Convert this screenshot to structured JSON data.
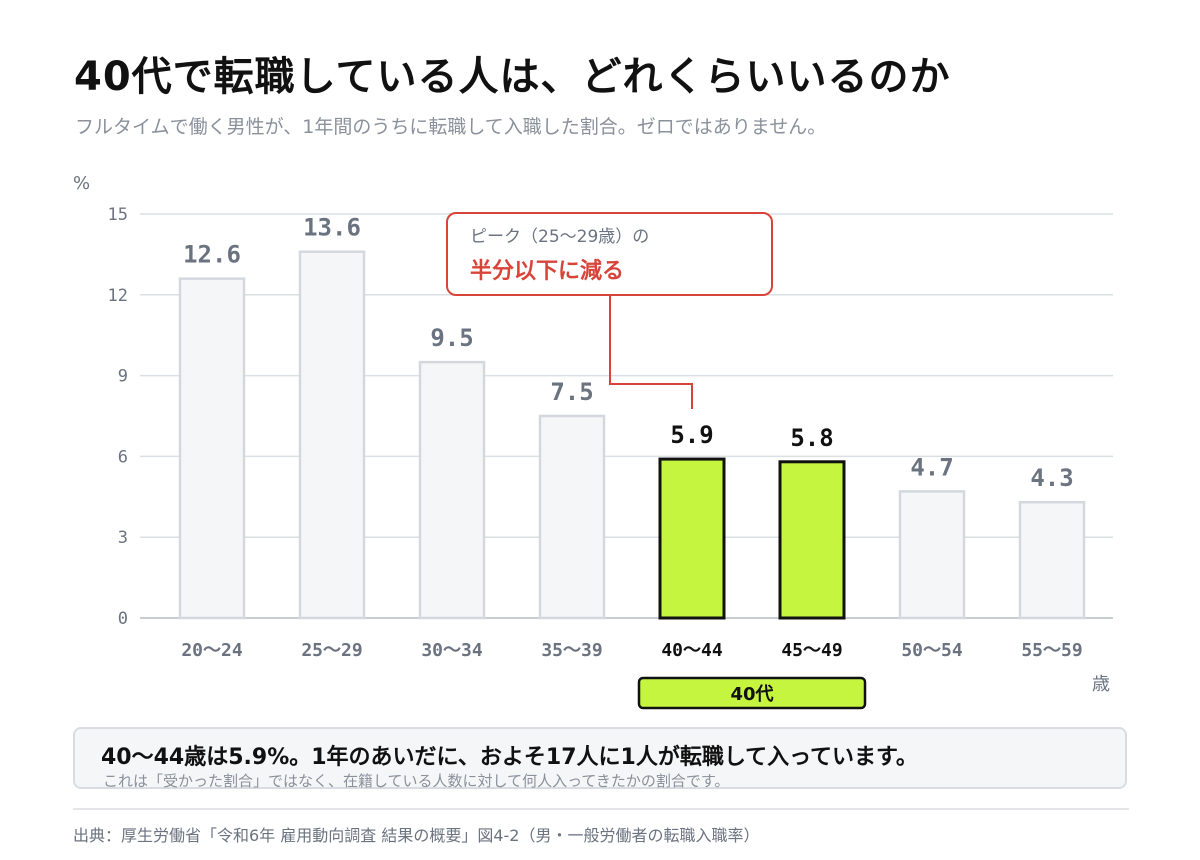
{
  "header": {
    "title": "40代で転職している人は、どれくらいいるのか",
    "subtitle": "フルタイムで働く男性が、1年間のうちに転職して入職した割合。ゼロではありません。"
  },
  "colors": {
    "bar_default": "#f5f6f8",
    "bar_default_stroke": "#d4d8de",
    "bar_highlight": "#c5f53f",
    "bar_highlight_stroke": "#111111",
    "label_muted": "#6b7380",
    "label_strong": "#111111",
    "grid": "#dcdfe3",
    "accent_red": "#d9443a"
  },
  "chart_data": {
    "type": "bar",
    "categories": [
      "20〜24",
      "25〜29",
      "30〜34",
      "35〜39",
      "40〜44",
      "45〜49",
      "50〜54",
      "55〜59"
    ],
    "values": [
      12.6,
      13.6,
      9.5,
      7.5,
      5.9,
      5.8,
      4.7,
      4.3
    ],
    "value_labels": [
      "12.6",
      "13.6",
      "9.5",
      "7.5",
      "5.9",
      "5.8",
      "4.7",
      "4.3"
    ],
    "highlighted": [
      false,
      false,
      false,
      false,
      true,
      true,
      false,
      false
    ],
    "ylim": [
      0,
      15
    ],
    "yticks": [
      0,
      3,
      6,
      9,
      12,
      15
    ],
    "ylabel": "%",
    "xlabel": "歳",
    "grid": true,
    "group_label": "40代",
    "annotation": {
      "line1": "ピーク（25〜29歳）の",
      "line2": "半分以下に減る",
      "target_category": "40〜44"
    }
  },
  "summary": {
    "main": "40〜44歳は5.9%。1年のあいだに、およそ17人に1人が転職して入っています。",
    "note": "これは「受かった割合」ではなく、在籍している人数に対して何人入ってきたかの割合です。"
  },
  "source": "出典：厚生労働省「令和6年 雇用動向調査 結果の概要」図4-2（男・一般労働者の転職入職率）"
}
